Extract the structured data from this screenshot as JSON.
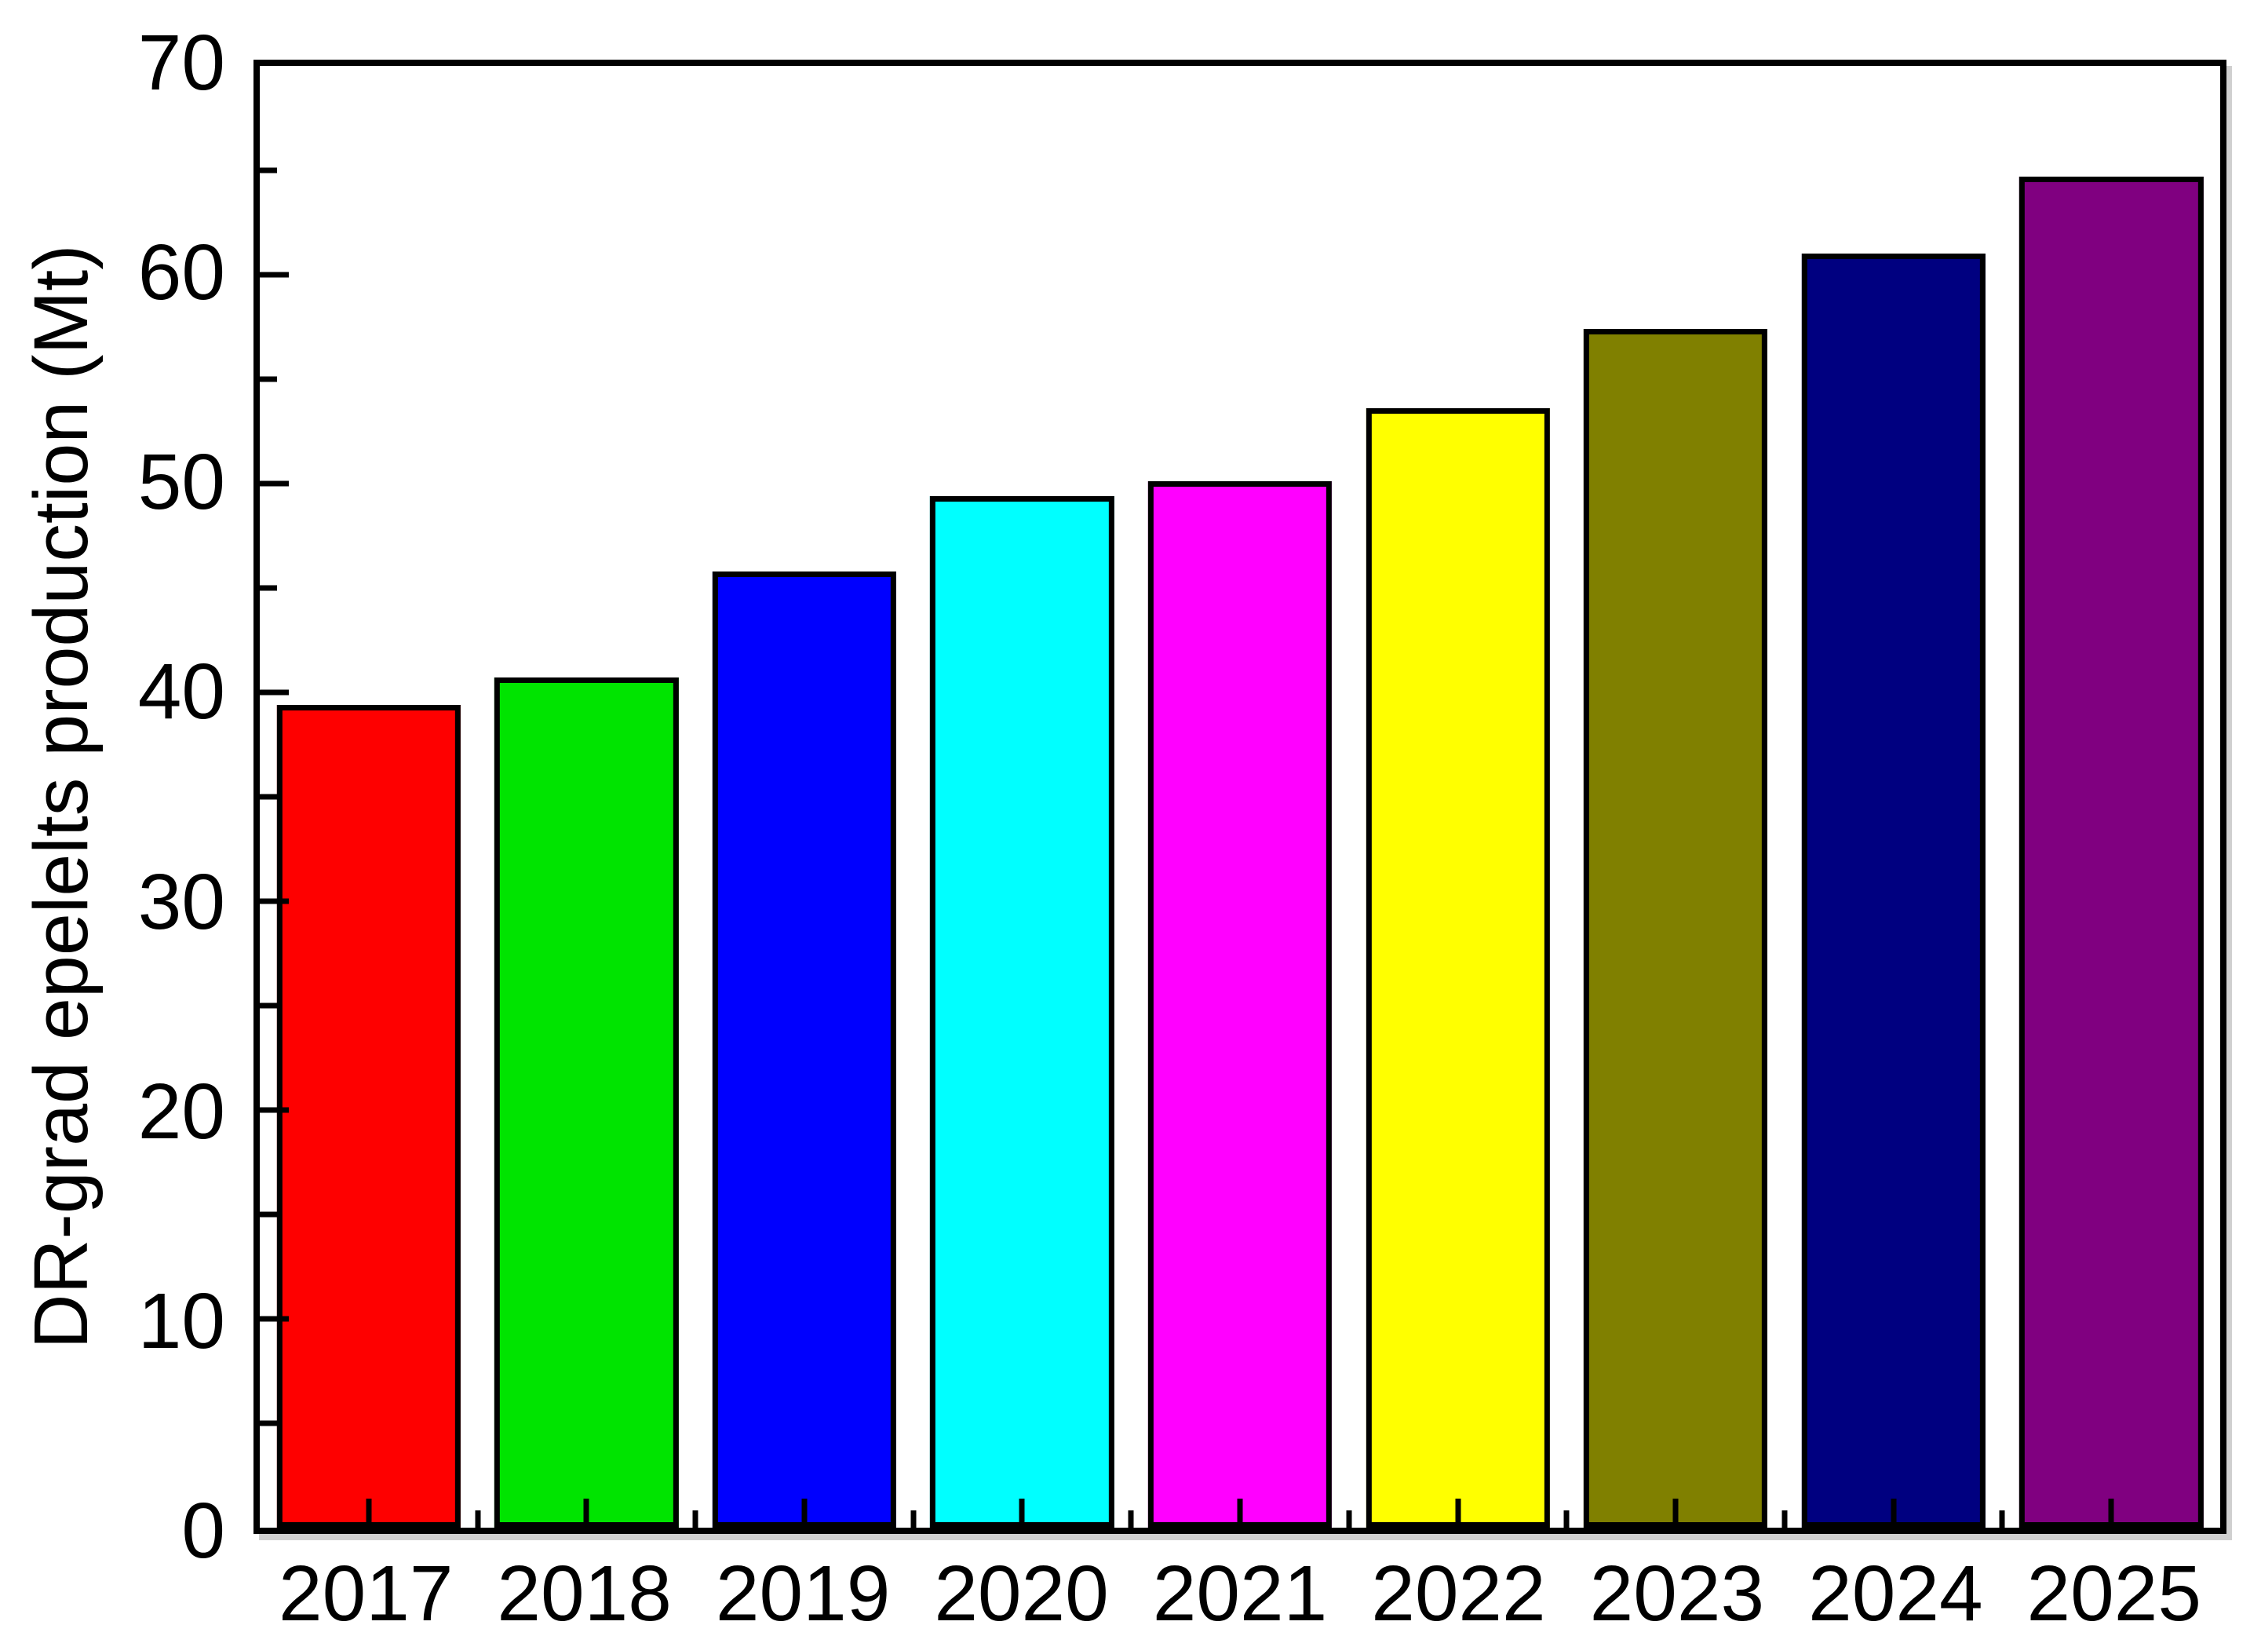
{
  "figure": {
    "background": "#ffffff",
    "frame_color": "#000000",
    "text_color": "#000000"
  },
  "chart_data": {
    "type": "bar",
    "title": "",
    "xlabel": "",
    "ylabel": "DR-grad epelelts production (Mt)",
    "categories": [
      "2017",
      "2018",
      "2019",
      "2020",
      "2021",
      "2022",
      "2023",
      "2024",
      "2025"
    ],
    "values": [
      39.4,
      40.7,
      45.8,
      49.4,
      50.1,
      53.6,
      57.4,
      61.0,
      64.7
    ],
    "bar_colors": [
      "#fe0000",
      "#00e400",
      "#0000fe",
      "#00ffff",
      "#ff00ff",
      "#ffff00",
      "#808000",
      "#000080",
      "#800080"
    ],
    "bar_outline_color": "#000000",
    "ylim": [
      0,
      70
    ],
    "y_major_ticks": [
      0,
      10,
      20,
      30,
      40,
      50,
      60,
      70
    ],
    "y_minor_ticks": [
      5,
      15,
      25,
      35,
      45,
      55,
      65
    ],
    "tick_direction": "in",
    "grid": false,
    "legend_position": "none"
  }
}
